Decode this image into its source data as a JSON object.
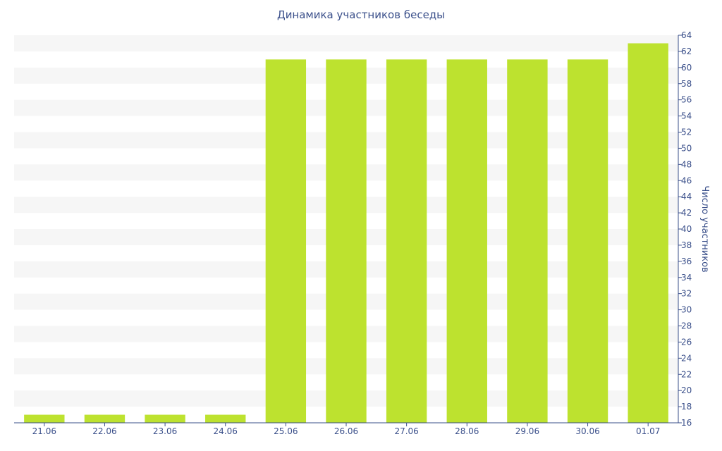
{
  "chart_data": {
    "type": "bar",
    "title": "Динамика участников беседы",
    "ylabel": "Число участников",
    "xlabel": "",
    "categories": [
      "21.06",
      "22.06",
      "23.06",
      "24.06",
      "25.06",
      "26.06",
      "27.06",
      "28.06",
      "29.06",
      "30.06",
      "01.07"
    ],
    "values": [
      17,
      17,
      17,
      17,
      61,
      61,
      61,
      61,
      61,
      61,
      63
    ],
    "ylim": [
      16,
      64
    ],
    "ytick_step": 2,
    "yaxis_side": "right",
    "grid": "alternating horizontal bands",
    "legend": "none",
    "colors": {
      "bar": "#bde22f",
      "band": "#f6f6f6",
      "axis": "#3a4f8a",
      "text": "#3a4f8a"
    }
  }
}
